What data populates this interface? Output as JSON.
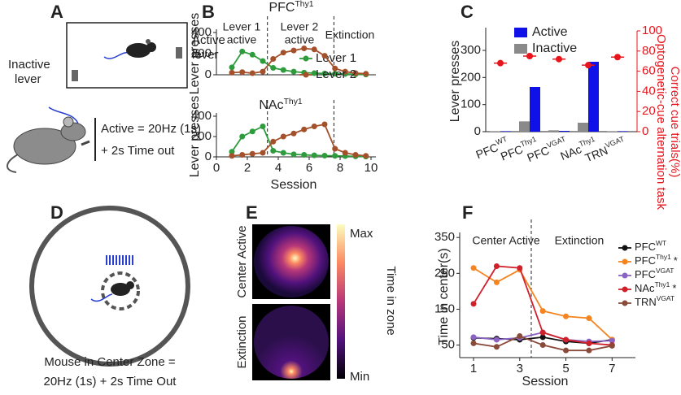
{
  "panel_labels": [
    "A",
    "B",
    "C",
    "D",
    "E",
    "F"
  ],
  "panel_a": {
    "active_lever": [
      "Active",
      "lever"
    ],
    "inactive_lever": [
      "Inactive",
      "lever"
    ],
    "protocol": [
      "Active = 20Hz (1s)",
      "+ 2s Time out"
    ]
  },
  "panel_d": {
    "caption": [
      "Mouse in Center Zone =",
      "20Hz (1s) + 2s Time Out"
    ]
  },
  "panel_e": {
    "rows": [
      "Center Active",
      "Extinction"
    ],
    "colorbar_max": "Max",
    "colorbar_min": "Min",
    "colorbar_label": "Time in zone"
  },
  "chart_data": [
    {
      "type": "line",
      "title": "PFC",
      "title_sup": "Thy1",
      "ylabel": "Lever presses",
      "x": [
        1,
        1.67,
        2.33,
        3,
        3.67,
        4.33,
        5,
        5.67,
        6.33,
        7,
        7.67,
        8.33,
        9,
        9.67
      ],
      "xlim": [
        0,
        10
      ],
      "ylim": [
        0,
        400
      ],
      "yticks": [
        0,
        200,
        400
      ],
      "phase_boundaries": [
        3.3,
        7.6
      ],
      "phase_labels": [
        [
          "Lever 1",
          "active"
        ],
        [
          "Lever 2",
          "active"
        ],
        [
          "Extinction"
        ]
      ],
      "legend": "right",
      "series": [
        {
          "name": "Lever 1",
          "color": "#2e9c3c",
          "values": [
            70,
            220,
            190,
            130,
            65,
            45,
            30,
            20,
            15,
            12,
            10,
            8,
            5,
            3
          ]
        },
        {
          "name": "Lever 2",
          "color": "#a4502a",
          "values": [
            20,
            25,
            15,
            30,
            150,
            210,
            230,
            250,
            240,
            180,
            60,
            30,
            15,
            10
          ]
        }
      ]
    },
    {
      "type": "line",
      "title": "NAc",
      "title_sup": "Thy1",
      "ylabel": "Lever presses",
      "xlabel": "Session",
      "x": [
        1,
        1.67,
        2.33,
        3,
        3.67,
        4.33,
        5,
        5.67,
        6.33,
        7,
        7.67,
        8.33,
        9,
        9.67
      ],
      "xlim": [
        0,
        10
      ],
      "xticks": [
        0,
        2,
        4,
        6,
        8,
        10
      ],
      "ylim": [
        0,
        400
      ],
      "yticks": [
        0,
        200,
        400
      ],
      "phase_boundaries": [
        3.3,
        7.6
      ],
      "series": [
        {
          "color": "#2e9c3c",
          "values": [
            50,
            200,
            250,
            300,
            60,
            40,
            25,
            20,
            15,
            12,
            10,
            8,
            5,
            3
          ]
        },
        {
          "color": "#a4502a",
          "values": [
            10,
            20,
            30,
            40,
            150,
            200,
            230,
            270,
            300,
            320,
            80,
            40,
            20,
            10
          ]
        }
      ]
    },
    {
      "type": "bar",
      "ylabel": "Lever presses",
      "y2label": [
        "Optogenetic-cue alternation task",
        "Correct cue trials(%)"
      ],
      "categories": [
        "PFC",
        "PFC",
        "PFC",
        "NAc",
        "TRN"
      ],
      "category_sups": [
        "WT",
        "Thy1",
        "VGAT",
        "Thy1",
        "VGAT"
      ],
      "ylim": [
        0,
        372
      ],
      "yticks": [
        0,
        100,
        200,
        300
      ],
      "y2lim": [
        0,
        100
      ],
      "y2ticks": [
        0,
        20,
        40,
        60,
        80,
        100
      ],
      "legend": "top",
      "series": [
        {
          "name": "Active",
          "color": "#1010e8",
          "values": [
            2,
            165,
            3,
            258,
            2
          ]
        },
        {
          "name": "Inactive",
          "color": "#8a8a8a",
          "values": [
            2,
            38,
            5,
            33,
            2
          ]
        },
        {
          "color": "#e8141c",
          "axis": "y2",
          "values": [
            68,
            75,
            72,
            66,
            74
          ]
        }
      ]
    },
    {
      "type": "line",
      "xlabel": "Session",
      "ylabel": "Time in center(s)",
      "x": [
        1,
        2,
        3,
        4,
        5,
        6,
        7
      ],
      "xlim": [
        0.4,
        7.8
      ],
      "xticks": [
        1,
        3,
        5,
        7
      ],
      "ylim": [
        15,
        355
      ],
      "yticks": [
        50,
        150,
        250,
        350
      ],
      "phase_boundaries": [
        3.5
      ],
      "phase_labels": [
        [
          "Center Active"
        ],
        [
          "Extinction"
        ]
      ],
      "legend": "right",
      "series": [
        {
          "name": "PFC",
          "name_sup": "WT",
          "color": "#111111",
          "values": [
            70,
            68,
            65,
            72,
            60,
            55,
            65
          ]
        },
        {
          "name": "PFC",
          "name_sup": "Thy1",
          "name_suffix": "*",
          "color": "#f5841f",
          "values": [
            265,
            225,
            260,
            145,
            130,
            125,
            65
          ]
        },
        {
          "name": "PFC",
          "name_sup": "VGAT",
          "color": "#8a63c4",
          "values": [
            72,
            65,
            70,
            85,
            65,
            60,
            62
          ]
        },
        {
          "name": "NAc",
          "name_sup": "Thy1",
          "name_suffix": "*",
          "color": "#d0202a",
          "values": [
            165,
            270,
            265,
            85,
            65,
            55,
            50
          ]
        },
        {
          "name": "TRN",
          "name_sup": "VGAT",
          "color": "#8a4a3a",
          "values": [
            55,
            45,
            75,
            50,
            35,
            35,
            48
          ]
        }
      ]
    }
  ]
}
